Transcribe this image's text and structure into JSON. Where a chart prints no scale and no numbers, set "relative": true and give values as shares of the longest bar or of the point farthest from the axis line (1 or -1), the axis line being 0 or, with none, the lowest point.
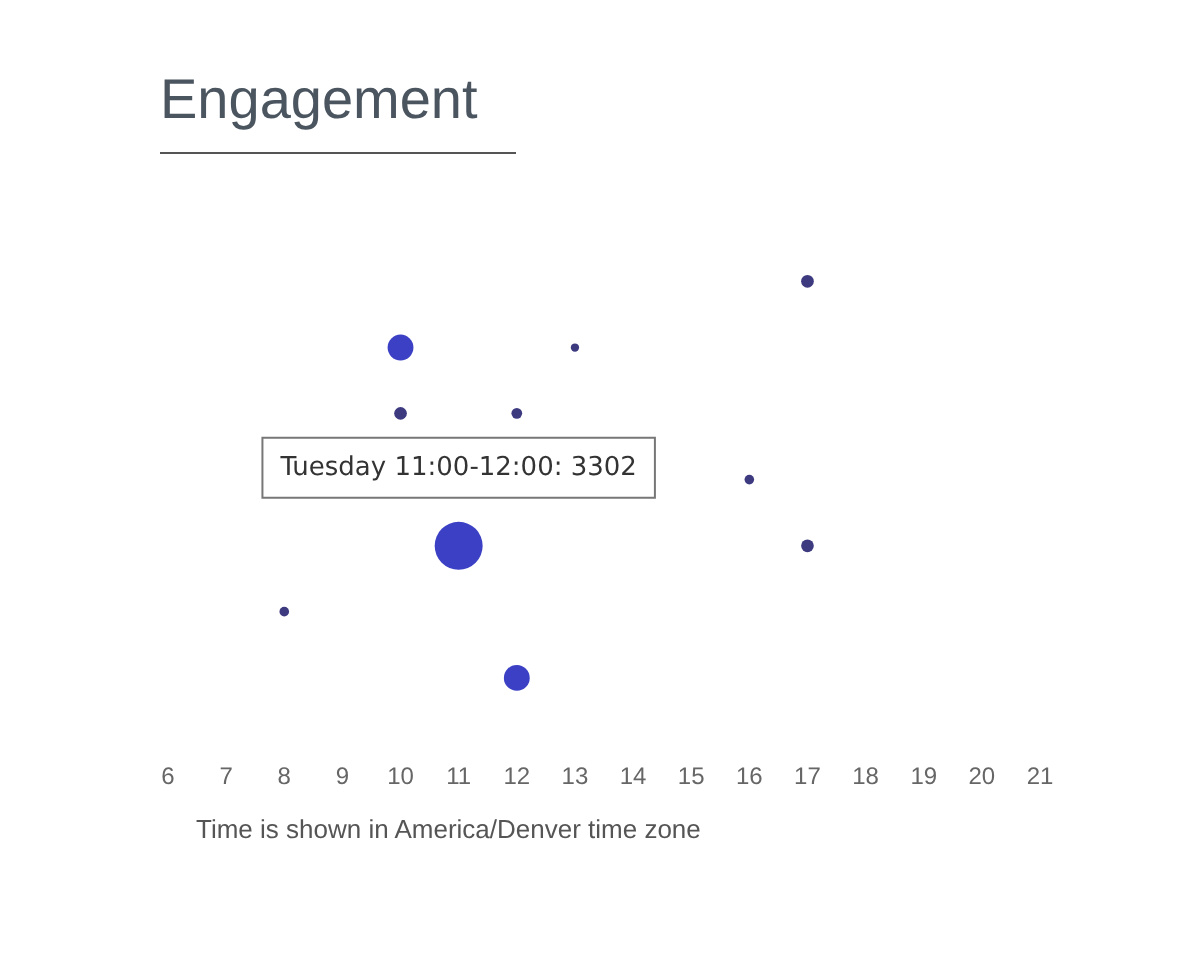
{
  "chart_data": {
    "type": "bubble",
    "title": "Engagement",
    "relative": true,
    "x": [
      17,
      10,
      13,
      10,
      12,
      16,
      11,
      17,
      8,
      12
    ],
    "values": [
      1,
      0.833,
      0.833,
      0.667,
      0.667,
      0.5,
      0.333,
      0.333,
      0.167,
      0
    ],
    "sizes": [
      0.07,
      0.29,
      0.03,
      0.07,
      0.05,
      0.04,
      1,
      0.07,
      0.04,
      0.29
    ],
    "colors": [
      "#3d3a80",
      "#3b40c4",
      "#3d3a80",
      "#3d3a80",
      "#3d3a80",
      "#3d3a80",
      "#3b40c4",
      "#3d3a80",
      "#3d3a80",
      "#3b40c4"
    ],
    "xlim": [
      6,
      21
    ],
    "xticks": [
      6,
      7,
      8,
      9,
      10,
      11,
      12,
      13,
      14,
      15,
      16,
      17,
      18,
      19,
      20,
      21
    ],
    "grid": false,
    "legend": false,
    "annotations": [
      {
        "text": "Tuesday 11:00-12:00: 3302",
        "x": 11,
        "y": 0.333
      },
      "Time is shown in America/Denver time zone"
    ]
  }
}
